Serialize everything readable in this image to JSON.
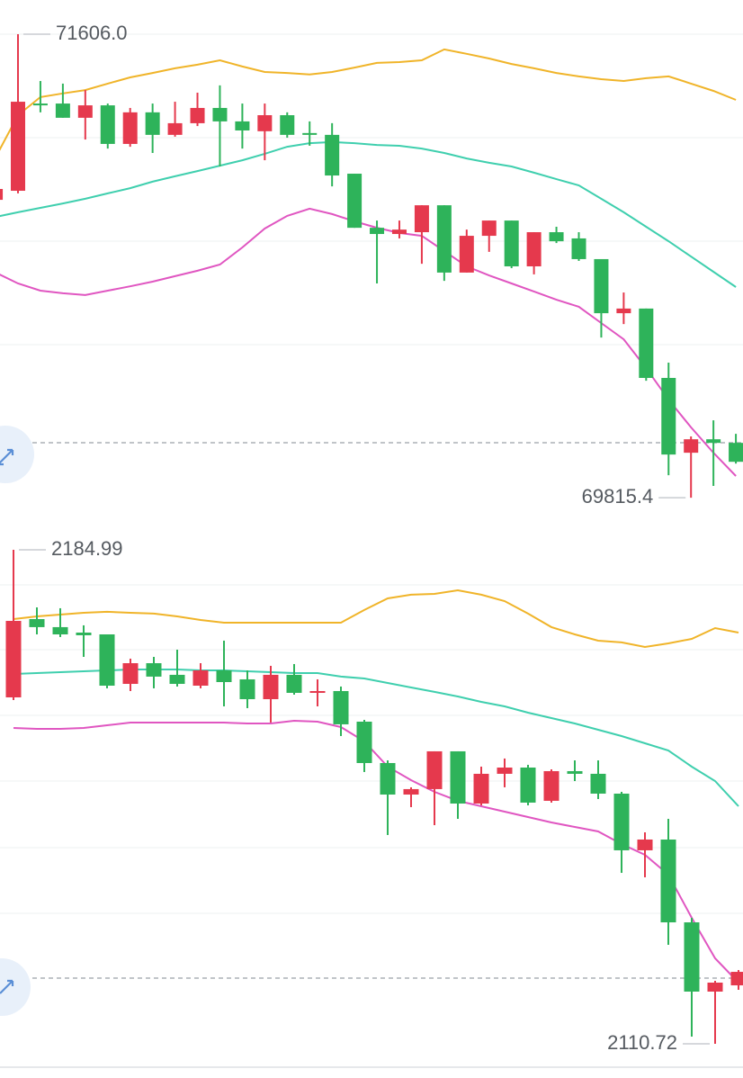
{
  "chart_data": [
    {
      "type": "candlestick",
      "ylim": [
        69687,
        71738
      ],
      "up_color": "#e5394d",
      "down_color": "#2eb35a",
      "open": [
        70966,
        71001,
        71338,
        71338,
        71283,
        71331,
        71182,
        71304,
        71217,
        71262,
        71321,
        71269,
        71231,
        71293,
        71224,
        71217,
        71067,
        70858,
        70834,
        70841,
        70945,
        70685,
        70827,
        70886,
        70709,
        70841,
        70817,
        70737,
        70528,
        70546,
        70278,
        69989,
        70041,
        70027
      ],
      "close": [
        71008,
        71345,
        71331,
        71283,
        71331,
        71182,
        71304,
        71217,
        71262,
        71321,
        71269,
        71234,
        71293,
        71217,
        71217,
        71060,
        70858,
        70834,
        70851,
        70945,
        70685,
        70827,
        70886,
        70709,
        70841,
        70806,
        70737,
        70528,
        70546,
        70278,
        69982,
        70041,
        70027,
        69954
      ],
      "high": [
        71025,
        71606.0,
        71425,
        71415,
        71390,
        71338,
        71321,
        71338,
        71345,
        71380,
        71408,
        71338,
        71338,
        71304,
        71269,
        71262,
        71067,
        70886,
        70886,
        70945,
        70945,
        70851,
        70886,
        70886,
        70841,
        70862,
        70841,
        70737,
        70608,
        70546,
        70337,
        70052,
        70114,
        70062
      ],
      "low": [
        70956,
        70991,
        71304,
        71283,
        71199,
        71164,
        71171,
        71147,
        71210,
        71251,
        71095,
        71164,
        71119,
        71206,
        71175,
        71018,
        70858,
        70643,
        70817,
        70719,
        70653,
        70685,
        70765,
        70702,
        70678,
        70799,
        70730,
        70434,
        70486,
        70267,
        69902,
        69815.4,
        69861,
        69947
      ],
      "lines": [
        {
          "color": "#f0b429",
          "values": [
            71130,
            71293,
            71363,
            71377,
            71390,
            71415,
            71439,
            71456,
            71474,
            71488,
            71505,
            71481,
            71460,
            71456,
            71450,
            71460,
            71477,
            71495,
            71498,
            71505,
            71547,
            71530,
            71512,
            71491,
            71474,
            71456,
            71443,
            71432,
            71425,
            71436,
            71443,
            71415,
            71387,
            71352
          ]
        },
        {
          "color": "#3fcfae",
          "values": [
            70900,
            70918,
            70935,
            70952,
            70970,
            70991,
            71011,
            71036,
            71057,
            71077,
            71098,
            71119,
            71144,
            71171,
            71185,
            71189,
            71185,
            71178,
            71175,
            71164,
            71147,
            71126,
            71109,
            71095,
            71071,
            71046,
            71022,
            70970,
            70918,
            70862,
            70806,
            70747,
            70688,
            70629
          ]
        },
        {
          "color": "#e056c1",
          "values": [
            70685,
            70643,
            70615,
            70605,
            70598,
            70615,
            70632,
            70650,
            70671,
            70692,
            70716,
            70782,
            70855,
            70904,
            70932,
            70911,
            70883,
            70858,
            70838,
            70827,
            70768,
            70709,
            70674,
            70643,
            70612,
            70580,
            70553,
            70490,
            70427,
            70316,
            70194,
            70087,
            69989,
            69899
          ]
        }
      ],
      "annotations": [
        {
          "value": 71606.0,
          "label": "71606.0"
        },
        {
          "value": 69815.4,
          "label": "69815.4"
        }
      ]
    },
    {
      "type": "candlestick",
      "ylim": [
        2107.34,
        2187.15
      ],
      "up_color": "#e5394d",
      "down_color": "#2eb35a",
      "open": [
        2162.8,
        2174.57,
        2173.36,
        2172.54,
        2172.27,
        2164.83,
        2167.94,
        2166.19,
        2164.56,
        2166.86,
        2165.51,
        2162.53,
        2166.19,
        2163.48,
        2163.75,
        2159.15,
        2152.93,
        2148.19,
        2149.01,
        2154.69,
        2146.84,
        2151.31,
        2152.25,
        2147.25,
        2151.71,
        2151.31,
        2148.33,
        2139.81,
        2141.43,
        2128.98,
        2118.57,
        2119.51
      ],
      "close": [
        2174.3,
        2173.36,
        2172.27,
        2172.14,
        2164.56,
        2167.94,
        2165.92,
        2164.83,
        2166.86,
        2165.1,
        2162.53,
        2166.19,
        2163.48,
        2163.75,
        2158.75,
        2152.93,
        2148.19,
        2149.01,
        2154.69,
        2146.84,
        2151.31,
        2152.25,
        2146.98,
        2151.71,
        2151.31,
        2148.33,
        2139.81,
        2141.43,
        2128.98,
        2118.57,
        2119.92,
        2121.54
      ],
      "high": [
        2184.99,
        2176.33,
        2176.2,
        2173.63,
        2172.27,
        2168.62,
        2168.89,
        2169.97,
        2167.94,
        2171.33,
        2166.86,
        2167.54,
        2167.81,
        2165.51,
        2164.43,
        2159.42,
        2153.33,
        2149.28,
        2154.69,
        2154.69,
        2152.39,
        2153.61,
        2152.66,
        2151.98,
        2153.33,
        2153.33,
        2148.6,
        2142.51,
        2144.54,
        2129.66,
        2120.19,
        2121.81
      ],
      "low": [
        2162.4,
        2172.27,
        2171.87,
        2168.89,
        2164.16,
        2163.75,
        2164.16,
        2164.43,
        2164.16,
        2161.45,
        2161.18,
        2159.02,
        2163.21,
        2161.45,
        2156.99,
        2151.58,
        2142.11,
        2146.3,
        2143.59,
        2144.54,
        2146.57,
        2149.28,
        2146.57,
        2146.98,
        2150.22,
        2147.52,
        2136.42,
        2135.75,
        2125.6,
        2111.8,
        2110.72,
        2118.84
      ],
      "lines": [
        {
          "color": "#f0b429",
          "values": [
            2174.57,
            2174.98,
            2175.25,
            2175.52,
            2175.66,
            2175.52,
            2175.39,
            2174.98,
            2174.44,
            2174.03,
            2174.03,
            2174.03,
            2174.03,
            2174.03,
            2174.03,
            2175.93,
            2177.68,
            2178.23,
            2178.36,
            2178.9,
            2178.23,
            2177.28,
            2175.39,
            2173.36,
            2172.27,
            2171.33,
            2171.06,
            2170.38,
            2170.92,
            2171.6,
            2173.22,
            2172.54
          ]
        },
        {
          "color": "#3fcfae",
          "values": [
            2166.32,
            2166.46,
            2166.59,
            2166.73,
            2166.86,
            2167.0,
            2167.0,
            2167.0,
            2166.86,
            2166.86,
            2166.73,
            2166.59,
            2166.46,
            2166.46,
            2165.92,
            2165.64,
            2164.97,
            2164.29,
            2163.62,
            2162.94,
            2162.13,
            2161.45,
            2160.5,
            2159.69,
            2158.88,
            2157.93,
            2156.99,
            2155.9,
            2154.82,
            2152.39,
            2150.22,
            2146.44
          ]
        },
        {
          "color": "#e056c1",
          "values": [
            2158.2,
            2158.07,
            2158.07,
            2158.2,
            2158.61,
            2159.02,
            2159.02,
            2159.02,
            2159.02,
            2159.02,
            2158.88,
            2158.88,
            2159.29,
            2159.15,
            2158.34,
            2156.18,
            2152.39,
            2150.36,
            2148.6,
            2147.25,
            2146.44,
            2145.62,
            2144.81,
            2144.0,
            2143.32,
            2142.65,
            2140.75,
            2139.13,
            2136.15,
            2129.66,
            2123.57,
            2119.92
          ]
        }
      ],
      "annotations": [
        {
          "value": 2184.99,
          "label": "2184.99"
        },
        {
          "value": 2110.72,
          "label": "2110.72"
        }
      ]
    }
  ]
}
